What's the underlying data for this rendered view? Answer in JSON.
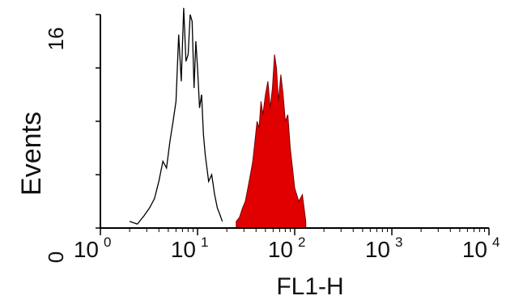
{
  "chart_data": {
    "type": "area",
    "title": "",
    "xlabel": "FL1-H",
    "ylabel": "Events",
    "x_scale": "log10",
    "xlim": [
      1,
      10000
    ],
    "ylim": [
      0,
      16
    ],
    "x_ticks": [
      {
        "value": 1,
        "base": "10",
        "exp": "0"
      },
      {
        "value": 10,
        "base": "10",
        "exp": "1"
      },
      {
        "value": 100,
        "base": "10",
        "exp": "2"
      },
      {
        "value": 1000,
        "base": "10",
        "exp": "3"
      },
      {
        "value": 10000,
        "base": "10",
        "exp": "4"
      }
    ],
    "y_tick_labels": [
      {
        "value": 0,
        "label": "0"
      },
      {
        "value": 16,
        "label": "16"
      }
    ],
    "y_minor_ticks": [
      4,
      8,
      12
    ],
    "grid": false,
    "legend": "none",
    "series": [
      {
        "style": "outline",
        "color": "#000000",
        "x": [
          2.0,
          2.4,
          2.8,
          3.2,
          3.6,
          4.0,
          4.4,
          4.8,
          5.2,
          5.6,
          6.0,
          6.4,
          6.8,
          7.2,
          7.6,
          8.0,
          8.4,
          8.8,
          9.2,
          9.6,
          10.0,
          10.5,
          11.0,
          11.5,
          12.0,
          13.0,
          14.0,
          15.0,
          16.0,
          17.0,
          18.0
        ],
        "y": [
          0.5,
          0.3,
          0.9,
          1.5,
          2.2,
          3.5,
          5.0,
          4.5,
          6.5,
          8.0,
          9.5,
          14.5,
          11.0,
          16.5,
          12.5,
          13.0,
          16.0,
          15.5,
          10.5,
          14.0,
          12.0,
          9.0,
          10.0,
          7.0,
          5.5,
          3.5,
          4.0,
          2.5,
          1.5,
          1.0,
          0.5
        ]
      },
      {
        "style": "filled",
        "color": "#e00000",
        "x": [
          25,
          27,
          29,
          31,
          33,
          35,
          37,
          39,
          41,
          43,
          45,
          47,
          50,
          53,
          56,
          59,
          62,
          65,
          68,
          72,
          76,
          80,
          85,
          90,
          95,
          100,
          110,
          120,
          130
        ],
        "y": [
          0.5,
          0.8,
          1.5,
          2.0,
          3.0,
          4.0,
          5.0,
          6.5,
          8.0,
          7.5,
          9.5,
          8.5,
          10.0,
          11.0,
          9.0,
          10.5,
          13.0,
          12.0,
          9.5,
          11.5,
          10.0,
          8.0,
          8.5,
          6.0,
          4.5,
          3.0,
          2.0,
          2.5,
          0.5
        ]
      }
    ]
  }
}
